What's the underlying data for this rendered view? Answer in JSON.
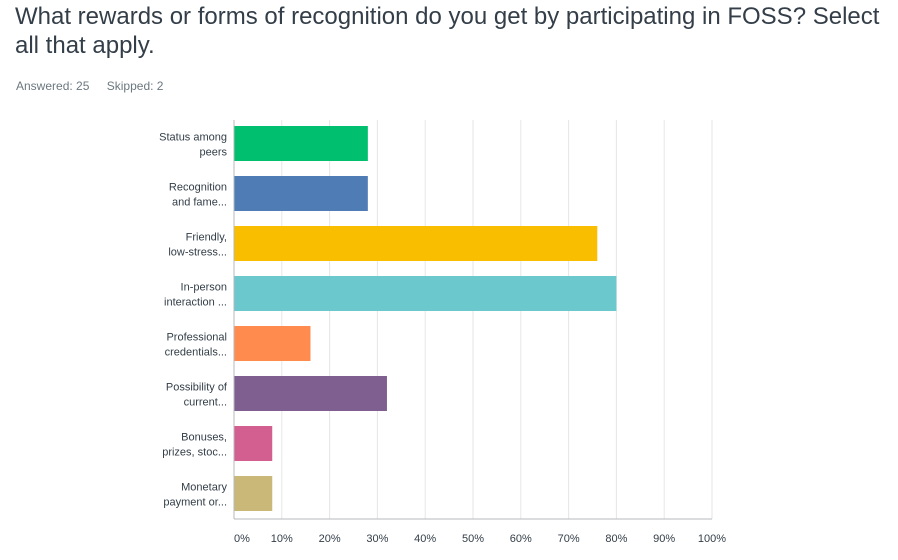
{
  "question": {
    "title": "What rewards or forms of recognition do you get by participating in FOSS? Select all that apply."
  },
  "stats": {
    "answered_label": "Answered:",
    "answered_value": "25",
    "skipped_label": "Skipped:",
    "skipped_value": "2"
  },
  "chart_data": {
    "type": "bar",
    "orientation": "horizontal",
    "categories": [
      [
        "Status among",
        "peers"
      ],
      [
        "Recognition",
        "and fame..."
      ],
      [
        "Friendly,",
        "low-stress..."
      ],
      [
        "In-person",
        "interaction ..."
      ],
      [
        "Professional",
        "credentials..."
      ],
      [
        "Possibility of",
        "current..."
      ],
      [
        "Bonuses,",
        "prizes, stoc..."
      ],
      [
        "Monetary",
        "payment or..."
      ]
    ],
    "values": [
      28,
      28,
      76,
      80,
      16,
      32,
      8,
      8
    ],
    "colors": [
      "#00bf6f",
      "#507cb6",
      "#f9be00",
      "#6bc8cd",
      "#ff8b4f",
      "#7f5f90",
      "#d25f90",
      "#c9b877"
    ],
    "xlim": [
      0,
      100
    ],
    "xticks": [
      0,
      10,
      20,
      30,
      40,
      50,
      60,
      70,
      80,
      90,
      100
    ],
    "xtick_labels": [
      "0%",
      "10%",
      "20%",
      "30%",
      "40%",
      "50%",
      "60%",
      "70%",
      "80%",
      "90%",
      "100%"
    ],
    "grid": true
  }
}
